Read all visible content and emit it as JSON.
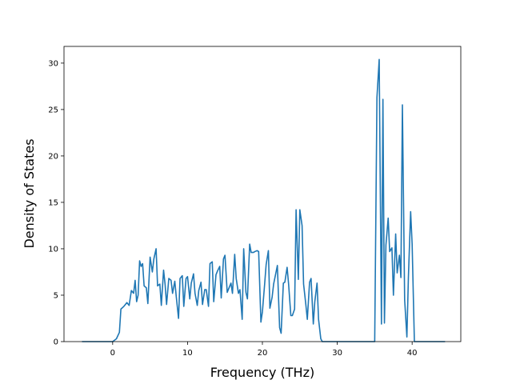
{
  "chart_data": {
    "type": "line",
    "title": "",
    "xlabel": "Frequency (THz)",
    "ylabel": "Density of States",
    "xlim": [
      -6.5,
      46.5
    ],
    "ylim": [
      0,
      31.8
    ],
    "xticks": [
      0,
      10,
      20,
      30,
      40
    ],
    "yticks": [
      0,
      5,
      10,
      15,
      20,
      25,
      30
    ],
    "grid": false,
    "legend": "none",
    "line_color": "#1f77b4",
    "series": [
      {
        "x": [
          -4.1,
          -0.5,
          0.0,
          0.5,
          0.9,
          1.1,
          1.5,
          1.9,
          2.2,
          2.5,
          2.8,
          3.0,
          3.2,
          3.4,
          3.6,
          3.8,
          4.0,
          4.2,
          4.5,
          4.7,
          5.0,
          5.3,
          5.5,
          5.8,
          6.0,
          6.3,
          6.5,
          6.8,
          7.0,
          7.2,
          7.5,
          7.8,
          8.0,
          8.3,
          8.5,
          8.8,
          9.0,
          9.3,
          9.5,
          9.8,
          10.0,
          10.3,
          10.5,
          10.8,
          11.0,
          11.3,
          11.5,
          11.8,
          12.0,
          12.3,
          12.5,
          12.8,
          13.0,
          13.3,
          13.5,
          13.8,
          14.0,
          14.3,
          14.5,
          14.8,
          15.0,
          15.3,
          15.5,
          15.8,
          16.0,
          16.3,
          16.5,
          16.8,
          17.0,
          17.3,
          17.5,
          17.8,
          18.0,
          18.3,
          18.5,
          18.8,
          19.0,
          19.3,
          19.5,
          19.8,
          20.0,
          20.3,
          20.5,
          20.8,
          21.0,
          21.3,
          21.5,
          21.8,
          22.0,
          22.3,
          22.5,
          22.8,
          23.0,
          23.3,
          23.5,
          23.8,
          24.0,
          24.3,
          24.5,
          24.8,
          25.0,
          25.3,
          25.5,
          25.8,
          26.0,
          26.3,
          26.5,
          26.8,
          27.0,
          27.3,
          27.5,
          27.8,
          28.0,
          28.3,
          28.5,
          35.0,
          35.3,
          35.6,
          35.9,
          36.1,
          36.3,
          36.5,
          36.8,
          37.0,
          37.3,
          37.5,
          37.8,
          38.0,
          38.3,
          38.5,
          38.7,
          39.0,
          39.3,
          39.5,
          39.8,
          40.0,
          40.3,
          40.5,
          44.4
        ],
        "y": [
          0,
          0,
          0,
          0.3,
          1.0,
          3.5,
          3.8,
          4.2,
          3.9,
          5.5,
          5.2,
          6.6,
          4.3,
          5.0,
          8.7,
          8.1,
          8.4,
          6.0,
          5.8,
          4.1,
          9.1,
          7.5,
          8.9,
          10.0,
          6.0,
          6.2,
          3.9,
          7.7,
          6.2,
          4.0,
          6.8,
          6.6,
          5.2,
          6.5,
          4.8,
          2.5,
          6.8,
          7.1,
          3.8,
          6.8,
          7.0,
          4.6,
          6.3,
          7.3,
          5.2,
          3.9,
          5.5,
          6.4,
          4.0,
          5.6,
          5.6,
          3.8,
          8.4,
          8.6,
          4.3,
          7.2,
          7.6,
          8.1,
          4.7,
          8.9,
          9.3,
          5.3,
          5.7,
          6.3,
          5.2,
          9.4,
          6.8,
          5.2,
          5.6,
          2.4,
          10.0,
          5.3,
          4.6,
          10.5,
          9.6,
          9.6,
          9.7,
          9.8,
          9.7,
          2.1,
          3.2,
          6.2,
          8.3,
          9.8,
          3.6,
          4.8,
          6.2,
          7.4,
          8.2,
          1.5,
          0.9,
          6.3,
          6.4,
          8.0,
          6.2,
          2.8,
          2.8,
          3.5,
          14.2,
          6.7,
          14.2,
          12.5,
          6.2,
          4.0,
          2.4,
          6.4,
          6.8,
          1.9,
          4.3,
          6.3,
          2.4,
          0.3,
          0,
          0,
          0,
          0,
          26.3,
          30.4,
          1.9,
          26.1,
          2.0,
          10.4,
          13.3,
          9.7,
          10.1,
          5.0,
          11.6,
          7.4,
          9.3,
          6.9,
          25.5,
          4.5,
          0.5,
          6.9,
          14.0,
          10.5,
          0,
          0,
          0
        ]
      }
    ]
  }
}
